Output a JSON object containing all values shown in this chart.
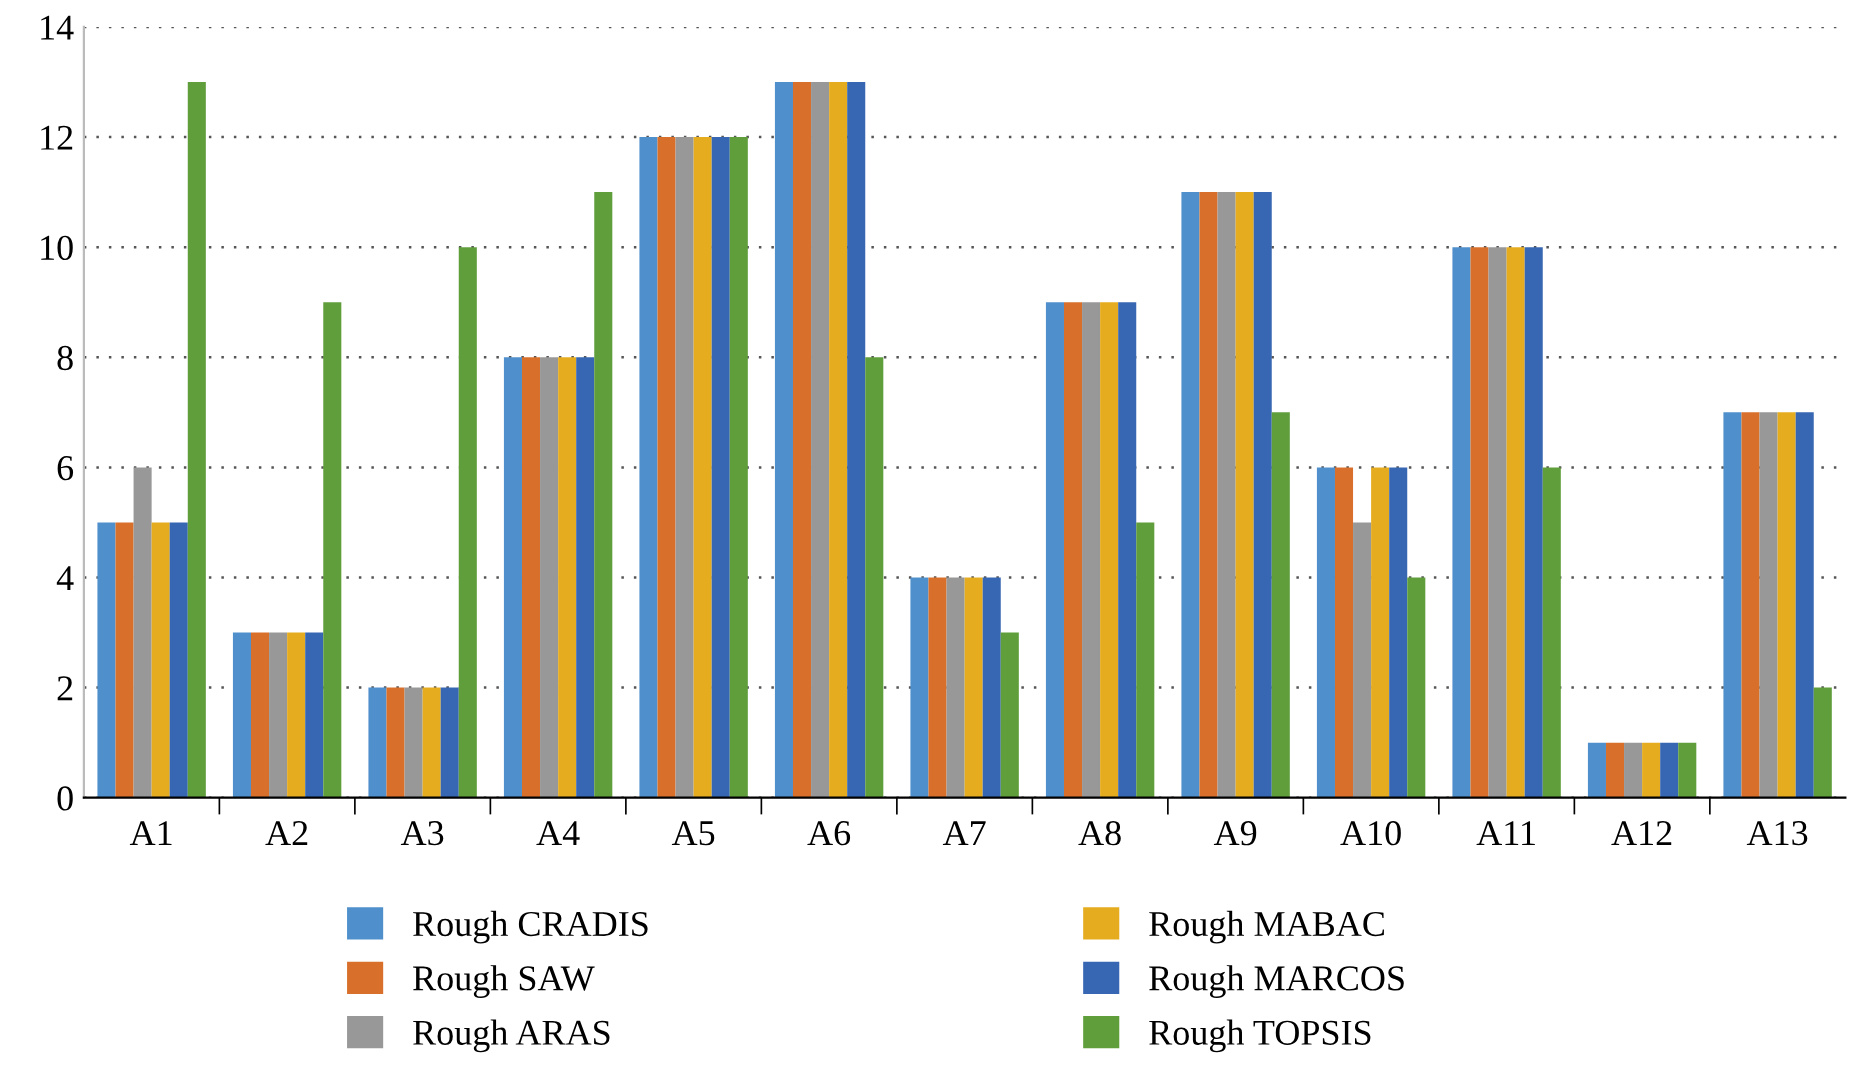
{
  "chart_data": {
    "type": "bar",
    "categories": [
      "A1",
      "A2",
      "A3",
      "A4",
      "A5",
      "A6",
      "A7",
      "A8",
      "A9",
      "A10",
      "A11",
      "A12",
      "A13"
    ],
    "series": [
      {
        "name": "Rough CRADIS",
        "color": "#4f8fcc",
        "values": [
          5,
          3,
          2,
          8,
          12,
          13,
          4,
          9,
          11,
          6,
          10,
          1,
          7
        ]
      },
      {
        "name": "Rough SAW",
        "color": "#d8702b",
        "values": [
          5,
          3,
          2,
          8,
          12,
          13,
          4,
          9,
          11,
          6,
          10,
          1,
          7
        ]
      },
      {
        "name": "Rough ARAS",
        "color": "#989898",
        "values": [
          6,
          3,
          2,
          8,
          12,
          13,
          4,
          9,
          11,
          5,
          10,
          1,
          7
        ]
      },
      {
        "name": "Rough MABAC",
        "color": "#e5ac20",
        "values": [
          5,
          3,
          2,
          8,
          12,
          13,
          4,
          9,
          11,
          6,
          10,
          1,
          7
        ]
      },
      {
        "name": "Rough MARCOS",
        "color": "#3766b2",
        "values": [
          5,
          3,
          2,
          8,
          12,
          13,
          4,
          9,
          11,
          6,
          10,
          1,
          7
        ]
      },
      {
        "name": "Rough TOPSIS",
        "color": "#5f9e3b",
        "values": [
          13,
          9,
          10,
          11,
          12,
          8,
          3,
          5,
          7,
          4,
          6,
          1,
          2
        ]
      }
    ],
    "ylim": [
      0,
      14
    ],
    "yticks": [
      0,
      2,
      4,
      6,
      8,
      10,
      12,
      14
    ],
    "grid": "y",
    "legend": "bottom"
  }
}
